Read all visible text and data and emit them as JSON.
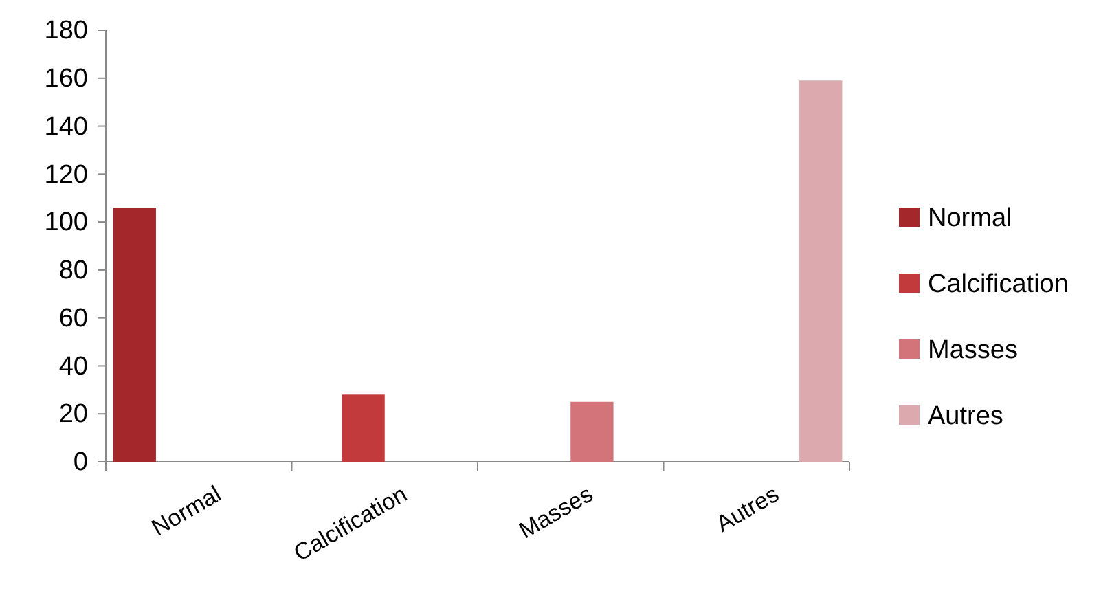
{
  "chart_data": {
    "type": "bar",
    "categories": [
      "Normal",
      "Calcification",
      "Masses",
      "Autres"
    ],
    "series": [
      {
        "name": "Normal",
        "color": "#a3272b",
        "values": [
          106,
          null,
          null,
          null
        ]
      },
      {
        "name": "Calcification",
        "color": "#c33a3c",
        "values": [
          null,
          28,
          null,
          null
        ]
      },
      {
        "name": "Masses",
        "color": "#d27479",
        "values": [
          null,
          null,
          25,
          null
        ]
      },
      {
        "name": "Autres",
        "color": "#dcaaae",
        "values": [
          null,
          null,
          null,
          159
        ]
      }
    ],
    "ylim": [
      0,
      180
    ],
    "yticks": [
      0,
      20,
      40,
      60,
      80,
      100,
      120,
      140,
      160,
      180
    ],
    "grid": false,
    "legend": "right"
  }
}
